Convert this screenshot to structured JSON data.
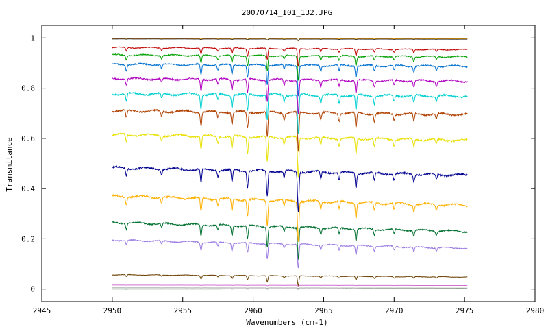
{
  "chart_data": {
    "type": "line",
    "title": "20070714_I01_132.JPG",
    "xlabel": "Wavenumbers (cm-1)",
    "ylabel": "Transmitance",
    "xlim": [
      2945,
      2980
    ],
    "ylim": [
      -0.05,
      1.05
    ],
    "xticks": [
      2945,
      2950,
      2955,
      2960,
      2965,
      2970,
      2975,
      2980
    ],
    "yticks": [
      0,
      0.2,
      0.4,
      0.6,
      0.8,
      1
    ],
    "ytick_labels": [
      "0",
      "0.2",
      "0.4",
      "0.6",
      "0.8",
      "1"
    ],
    "grid": false,
    "legend": "none",
    "x_range_data": [
      2950,
      2975.2
    ],
    "absorption_lines": [
      {
        "x": 2951.0,
        "w": 0.3
      },
      {
        "x": 2953.5,
        "w": 0.2
      },
      {
        "x": 2956.3,
        "w": 0.55
      },
      {
        "x": 2957.5,
        "w": 0.25
      },
      {
        "x": 2958.5,
        "w": 0.5
      },
      {
        "x": 2959.6,
        "w": 0.65
      },
      {
        "x": 2961.0,
        "w": 1.0
      },
      {
        "x": 2962.2,
        "w": 0.25
      },
      {
        "x": 2963.2,
        "w": 1.6
      },
      {
        "x": 2964.8,
        "w": 0.3
      },
      {
        "x": 2966.1,
        "w": 0.3
      },
      {
        "x": 2967.3,
        "w": 0.6
      },
      {
        "x": 2968.6,
        "w": 0.3
      },
      {
        "x": 2970.0,
        "w": 0.25
      },
      {
        "x": 2971.4,
        "w": 0.3
      },
      {
        "x": 2973.0,
        "w": 0.2
      }
    ],
    "series": [
      {
        "color": "#f0c000",
        "start": 0.998,
        "end": 0.998,
        "depth": 0.006
      },
      {
        "color": "#ff8c00",
        "start": 0.997,
        "end": 0.996,
        "depth": 0.005
      },
      {
        "color": "#333333",
        "start": 0.996,
        "end": 0.995,
        "depth": 0.004
      },
      {
        "color": "#c00000",
        "start": 0.962,
        "end": 0.953,
        "depth": 0.045
      },
      {
        "color": "#00a000",
        "start": 0.932,
        "end": 0.925,
        "depth": 0.06
      },
      {
        "color": "#0070d0",
        "start": 0.895,
        "end": 0.887,
        "depth": 0.075
      },
      {
        "color": "#b000c0",
        "start": 0.838,
        "end": 0.828,
        "depth": 0.085
      },
      {
        "color": "#00d0d0",
        "start": 0.778,
        "end": 0.768,
        "depth": 0.1
      },
      {
        "color": "#b04000",
        "start": 0.71,
        "end": 0.695,
        "depth": 0.1
      },
      {
        "color": "#e8e000",
        "start": 0.615,
        "end": 0.592,
        "depth": 0.1
      },
      {
        "color": "#000090",
        "start": 0.483,
        "end": 0.453,
        "depth": 0.1
      },
      {
        "color": "#ffb000",
        "start": 0.37,
        "end": 0.333,
        "depth": 0.1
      },
      {
        "color": "#007030",
        "start": 0.265,
        "end": 0.229,
        "depth": 0.08
      },
      {
        "color": "#9a7ae0",
        "start": 0.195,
        "end": 0.162,
        "depth": 0.06
      },
      {
        "color": "#6a4000",
        "start": 0.057,
        "end": 0.048,
        "depth": 0.025
      },
      {
        "color": "#d070d0",
        "start": 0.016,
        "end": 0.014,
        "depth": 0.002
      },
      {
        "color": "#a0a0a0",
        "start": 0.005,
        "end": 0.004,
        "depth": 0.001
      },
      {
        "color": "#007000",
        "start": 0.0,
        "end": 0.001,
        "depth": 0.0005
      }
    ]
  }
}
